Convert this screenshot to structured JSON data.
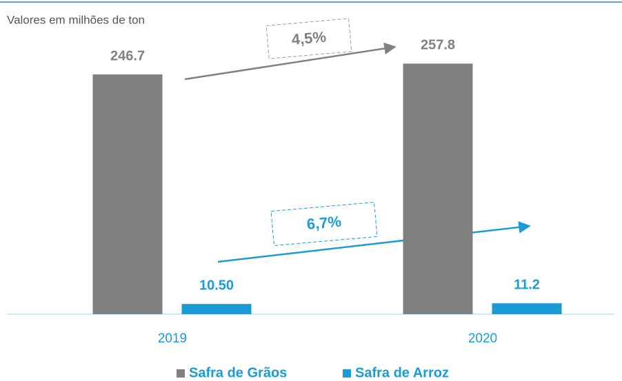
{
  "chart_data": {
    "type": "bar",
    "subtitle": "Valores em milhões de ton",
    "categories": [
      "2019",
      "2020"
    ],
    "series": [
      {
        "name": "Safra de Grãos",
        "color": "#808080",
        "values": [
          246.7,
          257.8
        ]
      },
      {
        "name": "Safra de Arroz",
        "color": "#1a9ad6",
        "values": [
          10.5,
          11.2
        ],
        "value_labels": [
          "10.50",
          "11.2"
        ]
      }
    ],
    "annotations": [
      "4,5%",
      "6,7%"
    ],
    "ylim": [
      0,
      280
    ],
    "legend": "bottom"
  }
}
